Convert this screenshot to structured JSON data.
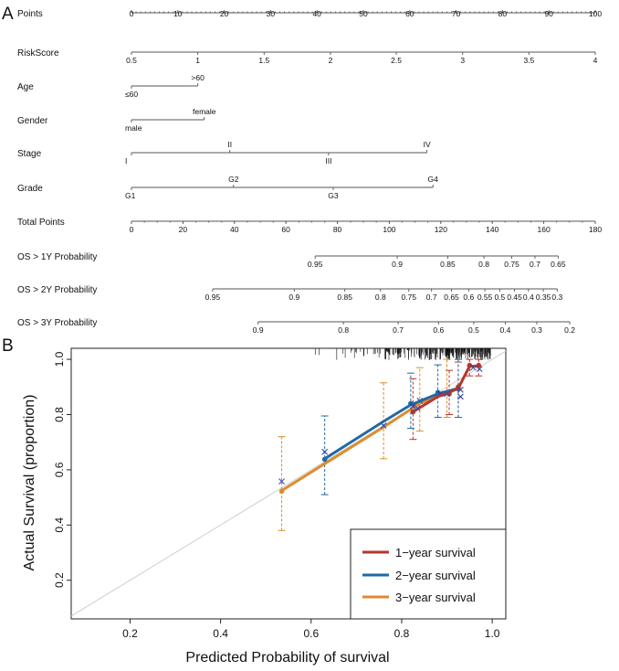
{
  "panel_a_label": "A",
  "panel_b_label": "B",
  "colors": {
    "y1": "#b5362b",
    "y2": "#1f6aa5",
    "y3": "#e08a2e",
    "axis": "#333333"
  },
  "chart_data": [
    {
      "type": "nomogram",
      "title": "",
      "points_range": [
        0,
        100
      ],
      "total_points_range": [
        0,
        180
      ],
      "rows": [
        {
          "name": "Points",
          "ticks": [
            {
              "label": "0",
              "pts": 0
            },
            {
              "label": "10",
              "pts": 10
            },
            {
              "label": "20",
              "pts": 20
            },
            {
              "label": "30",
              "pts": 30
            },
            {
              "label": "40",
              "pts": 40
            },
            {
              "label": "50",
              "pts": 50
            },
            {
              "label": "60",
              "pts": 60
            },
            {
              "label": "70",
              "pts": 70
            },
            {
              "label": "80",
              "pts": 80
            },
            {
              "label": "90",
              "pts": 90
            },
            {
              "label": "100",
              "pts": 100
            }
          ]
        },
        {
          "name": "RiskScore",
          "ticks": [
            {
              "label": "0.5",
              "pts": 0
            },
            {
              "label": "1",
              "pts": 14.3
            },
            {
              "label": "1.5",
              "pts": 28.6
            },
            {
              "label": "2",
              "pts": 42.9
            },
            {
              "label": "2.5",
              "pts": 57.1
            },
            {
              "label": "3",
              "pts": 71.4
            },
            {
              "label": "3.5",
              "pts": 85.7
            },
            {
              "label": "4",
              "pts": 100
            }
          ]
        },
        {
          "name": "Age",
          "ticks": [
            {
              "label": "≤60",
              "pts": 0,
              "pos": "below"
            },
            {
              "label": ">60",
              "pts": 14.3,
              "pos": "above"
            }
          ]
        },
        {
          "name": "Gender",
          "ticks": [
            {
              "label": "male",
              "pts": 0,
              "pos": "below"
            },
            {
              "label": "female",
              "pts": 15.7,
              "pos": "above"
            }
          ]
        },
        {
          "name": "Stage",
          "ticks": [
            {
              "label": "I",
              "pts": 0,
              "pos": "below"
            },
            {
              "label": "II",
              "pts": 21.2,
              "pos": "above"
            },
            {
              "label": "III",
              "pts": 42.5,
              "pos": "below"
            },
            {
              "label": "IV",
              "pts": 63.7,
              "pos": "above"
            }
          ]
        },
        {
          "name": "Grade",
          "ticks": [
            {
              "label": "G1",
              "pts": 0,
              "pos": "below"
            },
            {
              "label": "G2",
              "pts": 22.0,
              "pos": "above"
            },
            {
              "label": "G3",
              "pts": 43.5,
              "pos": "below"
            },
            {
              "label": "G4",
              "pts": 65.0,
              "pos": "above"
            }
          ]
        },
        {
          "name": "Total Points",
          "ticks": [
            {
              "label": "0",
              "pts": 0
            },
            {
              "label": "20",
              "pts": 11.1
            },
            {
              "label": "40",
              "pts": 22.2
            },
            {
              "label": "60",
              "pts": 33.3
            },
            {
              "label": "80",
              "pts": 44.4
            },
            {
              "label": "100",
              "pts": 55.6
            },
            {
              "label": "120",
              "pts": 66.7
            },
            {
              "label": "140",
              "pts": 77.8
            },
            {
              "label": "160",
              "pts": 88.9
            },
            {
              "label": "180",
              "pts": 100
            }
          ]
        },
        {
          "name": "OS > 1Y Probability",
          "ticks": [
            {
              "label": "0.95",
              "pts": 39.6
            },
            {
              "label": "0.9",
              "pts": 57.3
            },
            {
              "label": "0.85",
              "pts": 68.2
            },
            {
              "label": "0.8",
              "pts": 76.0
            },
            {
              "label": "0.75",
              "pts": 82.0
            },
            {
              "label": "0.7",
              "pts": 87.0
            },
            {
              "label": "0.65",
              "pts": 92.0
            }
          ]
        },
        {
          "name": "OS > 2Y Probability",
          "ticks": [
            {
              "label": "0.95",
              "pts": 17.5
            },
            {
              "label": "0.9",
              "pts": 35.1
            },
            {
              "label": "0.85",
              "pts": 46.0
            },
            {
              "label": "0.8",
              "pts": 53.7
            },
            {
              "label": "0.75",
              "pts": 59.8
            },
            {
              "label": "0.7",
              "pts": 64.7
            },
            {
              "label": "0.65",
              "pts": 69.0
            },
            {
              "label": "0.6",
              "pts": 72.7
            },
            {
              "label": "0.55",
              "pts": 76.2
            },
            {
              "label": "0.5",
              "pts": 79.4
            },
            {
              "label": "0.45",
              "pts": 82.6
            },
            {
              "label": "0.4",
              "pts": 85.6
            },
            {
              "label": "0.35",
              "pts": 88.8
            },
            {
              "label": "0.3",
              "pts": 91.8
            }
          ]
        },
        {
          "name": "OS > 3Y Probability",
          "ticks": [
            {
              "label": "0.9",
              "pts": 27.3
            },
            {
              "label": "0.8",
              "pts": 45.7
            },
            {
              "label": "0.7",
              "pts": 57.5
            },
            {
              "label": "0.6",
              "pts": 66.2
            },
            {
              "label": "0.5",
              "pts": 73.8
            },
            {
              "label": "0.4",
              "pts": 80.6
            },
            {
              "label": "0.3",
              "pts": 87.4
            },
            {
              "label": "0.2",
              "pts": 94.5
            }
          ]
        }
      ]
    },
    {
      "type": "calibration",
      "title": "",
      "xlabel": "Predicted Probability of survival",
      "ylabel": "Actual Survival (proportion)",
      "xlim": [
        0.07,
        1.03
      ],
      "ylim": [
        0.06,
        1.04
      ],
      "xticks": [
        "0.2",
        "0.4",
        "0.6",
        "0.8",
        "1.0"
      ],
      "yticks": [
        "0.2",
        "0.4",
        "0.6",
        "0.8",
        "1.0"
      ],
      "legend": {
        "placement": "bottom-right",
        "entries": [
          "1−year survival",
          "2−year survival",
          "3−year survival"
        ]
      },
      "series": [
        {
          "name": "1−year survival",
          "color_key": "y1",
          "curve": [
            [
              0.825,
              0.81
            ],
            [
              0.88,
              0.865
            ],
            [
              0.905,
              0.88
            ],
            [
              0.925,
              0.895
            ],
            [
              0.95,
              0.975
            ],
            [
              0.97,
              0.975
            ]
          ],
          "points": [
            [
              0.825,
              0.81
            ],
            [
              0.905,
              0.875
            ],
            [
              0.925,
              0.9
            ],
            [
              0.95,
              0.978
            ],
            [
              0.97,
              0.978
            ]
          ],
          "crosses": [
            [
              0.835,
              0.823
            ],
            [
              0.9,
              0.875
            ],
            [
              0.93,
              0.89
            ],
            [
              0.958,
              0.97
            ],
            [
              0.972,
              0.965
            ]
          ],
          "errorbars": [
            [
              0.825,
              0.71,
              0.93
            ],
            [
              0.905,
              0.8,
              0.96
            ],
            [
              0.925,
              0.79,
              0.99
            ],
            [
              0.95,
              0.94,
              1.0
            ],
            [
              0.97,
              0.94,
              1.0
            ]
          ]
        },
        {
          "name": "2−year survival",
          "color_key": "y2",
          "curve": [
            [
              0.63,
              0.64
            ],
            [
              0.76,
              0.775
            ],
            [
              0.82,
              0.835
            ],
            [
              0.88,
              0.875
            ],
            [
              0.925,
              0.895
            ]
          ],
          "points": [
            [
              0.63,
              0.638
            ],
            [
              0.82,
              0.84
            ],
            [
              0.88,
              0.88
            ],
            [
              0.925,
              0.893
            ]
          ],
          "crosses": [
            [
              0.63,
              0.665
            ],
            [
              0.825,
              0.83
            ],
            [
              0.885,
              0.875
            ],
            [
              0.93,
              0.865
            ]
          ],
          "errorbars": [
            [
              0.63,
              0.51,
              0.795
            ],
            [
              0.82,
              0.75,
              0.95
            ],
            [
              0.88,
              0.79,
              0.98
            ],
            [
              0.925,
              0.79,
              1.0
            ]
          ]
        },
        {
          "name": "3−year survival",
          "color_key": "y3",
          "curve": [
            [
              0.535,
              0.525
            ],
            [
              0.76,
              0.755
            ],
            [
              0.84,
              0.84
            ],
            [
              0.9,
              0.88
            ]
          ],
          "points": [
            [
              0.535,
              0.522
            ],
            [
              0.84,
              0.845
            ]
          ],
          "crosses": [
            [
              0.535,
              0.558
            ],
            [
              0.76,
              0.76
            ],
            [
              0.84,
              0.85
            ],
            [
              0.9,
              0.875
            ]
          ],
          "errorbars": [
            [
              0.535,
              0.38,
              0.72
            ],
            [
              0.76,
              0.64,
              0.915
            ],
            [
              0.84,
              0.74,
              0.97
            ],
            [
              0.9,
              0.79,
              1.0
            ]
          ]
        }
      ]
    }
  ]
}
